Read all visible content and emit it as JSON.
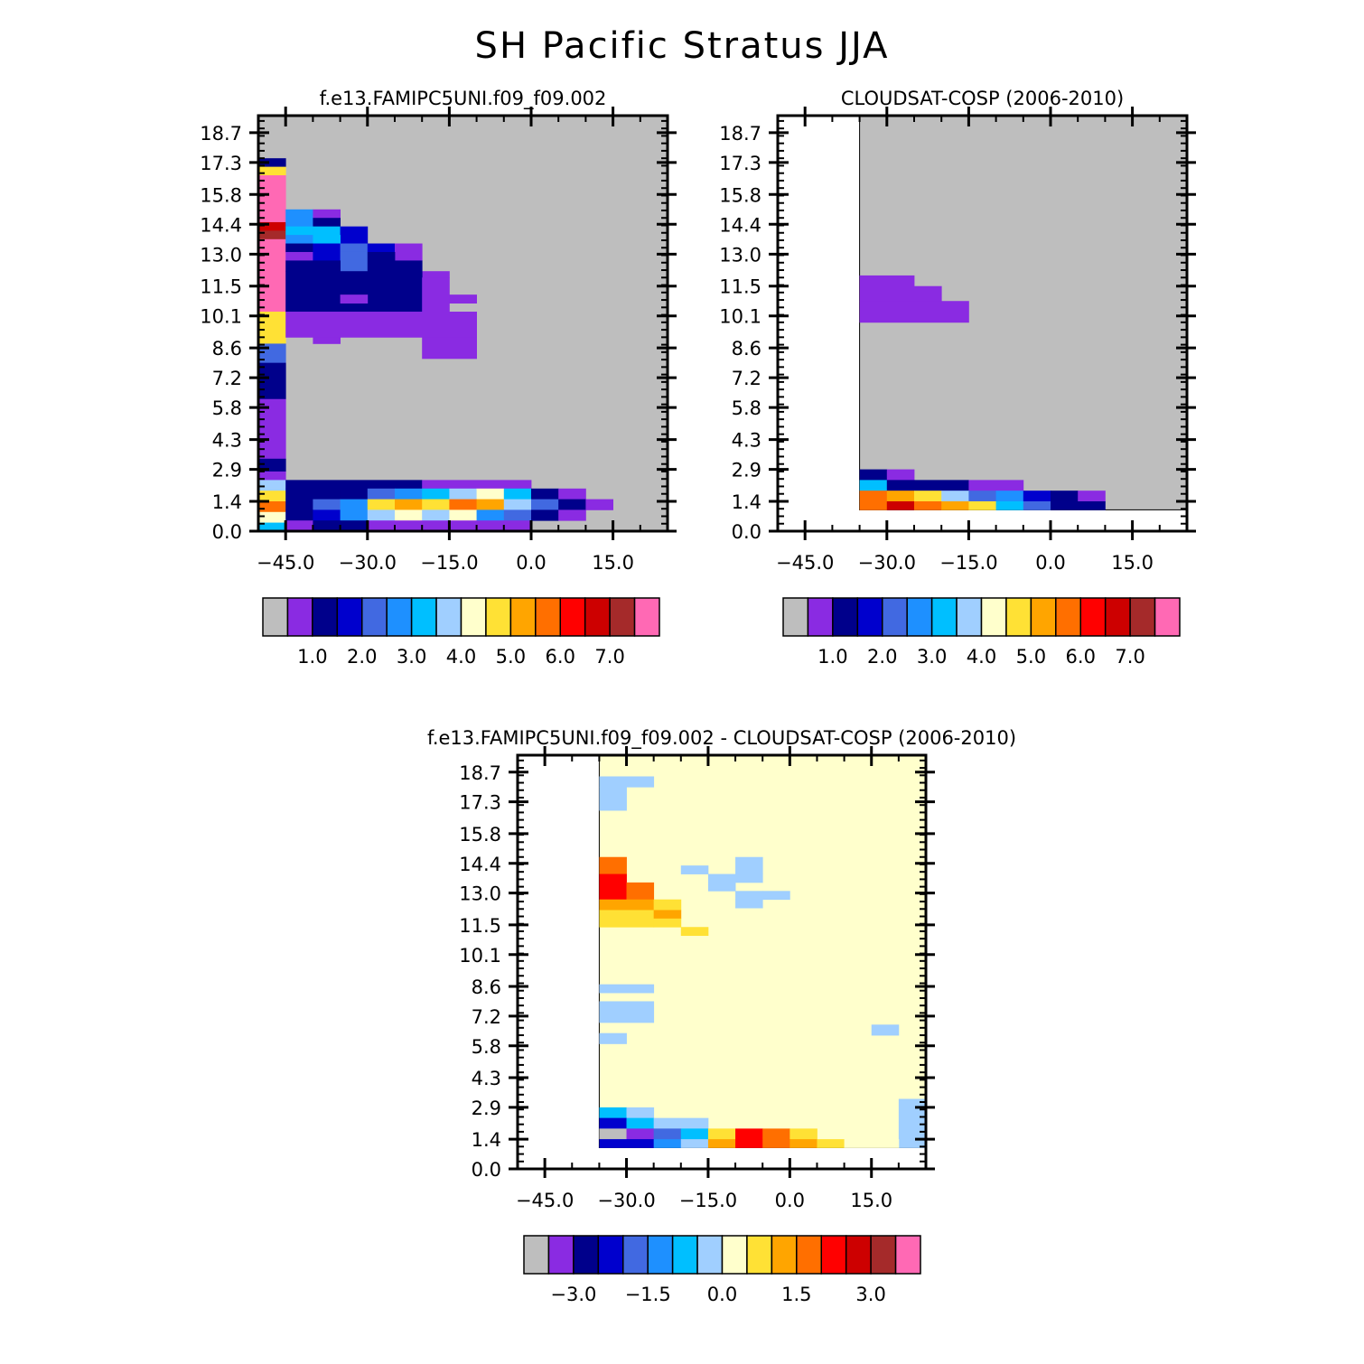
{
  "page": {
    "title": "SH Pacific Stratus JJA"
  },
  "palette": {
    "grey": "#bebebe",
    "violet": "#8a2be2",
    "navy": "#00008b",
    "medblue": "#0000cd",
    "royal": "#4169e1",
    "dodger": "#1e90ff",
    "sky": "#00bfff",
    "lightsky": "#a0cfff",
    "cream": "#ffffcc",
    "gold": "#ffe135",
    "orange": "#ffa500",
    "darkorange": "#ff6f00",
    "red": "#ff0000",
    "crimson": "#cd0000",
    "brick": "#a52a2a",
    "pink": "#ff69b4"
  },
  "chart_data": [
    {
      "id": "model",
      "type": "heatmap",
      "title": "f.e13.FAMIPC5UNI.f09_f09.002",
      "xlabel": "",
      "ylabel": "",
      "xlim": [
        -50,
        25
      ],
      "ylim": [
        0,
        19.5
      ],
      "x_ticks": [
        "-45.0",
        "-30.0",
        "-15.0",
        "0.0",
        "15.0"
      ],
      "y_ticks": [
        "0.0",
        "1.4",
        "2.9",
        "4.3",
        "5.8",
        "7.2",
        "8.6",
        "10.1",
        "11.5",
        "13.0",
        "14.4",
        "15.8",
        "17.3",
        "18.7"
      ],
      "background": "grey",
      "cells": [
        [
          -50,
          17.1,
          -45,
          17.5,
          "navy"
        ],
        [
          -50,
          16.7,
          -45,
          17.1,
          "gold"
        ],
        [
          -50,
          14.5,
          -45,
          16.7,
          "pink"
        ],
        [
          -50,
          14.1,
          -45,
          14.5,
          "crimson"
        ],
        [
          -50,
          13.7,
          -45,
          14.1,
          "brick"
        ],
        [
          -50,
          10.3,
          -45,
          13.7,
          "pink"
        ],
        [
          -50,
          8.8,
          -45,
          10.3,
          "gold"
        ],
        [
          -50,
          7.9,
          -45,
          8.8,
          "royal"
        ],
        [
          -50,
          6.2,
          -45,
          7.9,
          "navy"
        ],
        [
          -50,
          3.4,
          -45,
          6.2,
          "violet"
        ],
        [
          -50,
          2.8,
          -45,
          3.4,
          "navy"
        ],
        [
          -50,
          2.4,
          -45,
          2.8,
          "violet"
        ],
        [
          -50,
          1.9,
          -45,
          2.4,
          "lightsky"
        ],
        [
          -50,
          1.4,
          -45,
          1.9,
          "gold"
        ],
        [
          -50,
          0.9,
          -45,
          1.4,
          "darkorange"
        ],
        [
          -50,
          0.4,
          -45,
          0.9,
          "cream"
        ],
        [
          -50,
          0,
          -45,
          0.4,
          "sky"
        ],
        [
          -45,
          14.3,
          -40,
          15.1,
          "dodger"
        ],
        [
          -40,
          14.7,
          -35,
          15.1,
          "violet"
        ],
        [
          -40,
          14.3,
          -35,
          14.7,
          "navy"
        ],
        [
          -45,
          13.9,
          -40,
          14.3,
          "sky"
        ],
        [
          -40,
          13.9,
          -35,
          14.3,
          "sky"
        ],
        [
          -35,
          13.5,
          -30,
          14.3,
          "medblue"
        ],
        [
          -45,
          13.5,
          -40,
          13.9,
          "dodger"
        ],
        [
          -40,
          13.5,
          -35,
          13.9,
          "sky"
        ],
        [
          -45,
          13.1,
          -40,
          13.5,
          "navy"
        ],
        [
          -40,
          13.1,
          -35,
          13.5,
          "medblue"
        ],
        [
          -35,
          13.1,
          -30,
          13.5,
          "royal"
        ],
        [
          -30,
          13.1,
          -25,
          13.5,
          "medblue"
        ],
        [
          -25,
          12.7,
          -20,
          13.5,
          "violet"
        ],
        [
          -45,
          12.7,
          -40,
          13.1,
          "violet"
        ],
        [
          -40,
          12.7,
          -35,
          13.1,
          "medblue"
        ],
        [
          -35,
          12.2,
          -30,
          13.1,
          "royal"
        ],
        [
          -30,
          12.2,
          -25,
          13.1,
          "navy"
        ],
        [
          -45,
          12.2,
          -35,
          12.7,
          "navy"
        ],
        [
          -25,
          12.2,
          -20,
          12.7,
          "navy"
        ],
        [
          -20,
          11.9,
          -15,
          12.2,
          "violet"
        ],
        [
          -45,
          10.3,
          -20,
          12.2,
          "navy"
        ],
        [
          -20,
          10.3,
          -15,
          11.9,
          "violet"
        ],
        [
          -15,
          10.7,
          -10,
          11.1,
          "violet"
        ],
        [
          -35,
          10.7,
          -30,
          11.1,
          "violet"
        ],
        [
          -45,
          9.1,
          -10,
          10.3,
          "violet"
        ],
        [
          -40,
          8.8,
          -35,
          9.1,
          "violet"
        ],
        [
          -20,
          8.1,
          -10,
          9.1,
          "violet"
        ],
        [
          -45,
          2.0,
          -20,
          2.4,
          "navy"
        ],
        [
          -20,
          2.0,
          0,
          2.4,
          "violet"
        ],
        [
          -45,
          1.5,
          -40,
          2.0,
          "navy"
        ],
        [
          -40,
          1.5,
          -35,
          2.0,
          "navy"
        ],
        [
          -35,
          1.5,
          -30,
          2.0,
          "navy"
        ],
        [
          -30,
          1.5,
          -25,
          2.0,
          "royal"
        ],
        [
          -25,
          1.5,
          -20,
          2.0,
          "dodger"
        ],
        [
          -20,
          1.5,
          -15,
          2.0,
          "sky"
        ],
        [
          -15,
          1.5,
          -10,
          2.0,
          "lightsky"
        ],
        [
          -10,
          1.5,
          -5,
          2.0,
          "cream"
        ],
        [
          -5,
          1.5,
          0,
          2.0,
          "sky"
        ],
        [
          0,
          1.5,
          5,
          2.0,
          "navy"
        ],
        [
          5,
          1.5,
          10,
          2.0,
          "violet"
        ],
        [
          -45,
          1.0,
          -40,
          1.5,
          "navy"
        ],
        [
          -40,
          1.0,
          -35,
          1.5,
          "royal"
        ],
        [
          -35,
          1.0,
          -30,
          1.5,
          "dodger"
        ],
        [
          -30,
          1.0,
          -25,
          1.5,
          "gold"
        ],
        [
          -25,
          1.0,
          -20,
          1.5,
          "orange"
        ],
        [
          -20,
          1.0,
          -15,
          1.5,
          "gold"
        ],
        [
          -15,
          1.0,
          -10,
          1.5,
          "darkorange"
        ],
        [
          -10,
          1.0,
          -5,
          1.5,
          "orange"
        ],
        [
          -5,
          1.0,
          0,
          1.5,
          "lightsky"
        ],
        [
          0,
          1.0,
          5,
          1.5,
          "royal"
        ],
        [
          5,
          1.0,
          10,
          1.5,
          "navy"
        ],
        [
          10,
          1.0,
          15,
          1.5,
          "violet"
        ],
        [
          -45,
          0.5,
          -40,
          1.0,
          "navy"
        ],
        [
          -40,
          0.5,
          -35,
          1.0,
          "medblue"
        ],
        [
          -35,
          0.5,
          -30,
          1.0,
          "dodger"
        ],
        [
          -30,
          0.5,
          -25,
          1.0,
          "lightsky"
        ],
        [
          -25,
          0.5,
          -20,
          1.0,
          "cream"
        ],
        [
          -20,
          0.5,
          -15,
          1.0,
          "lightsky"
        ],
        [
          -15,
          0.5,
          -10,
          1.0,
          "cream"
        ],
        [
          -10,
          0.5,
          -5,
          1.0,
          "dodger"
        ],
        [
          -5,
          0.5,
          0,
          1.0,
          "royal"
        ],
        [
          0,
          0.5,
          5,
          1.0,
          "navy"
        ],
        [
          5,
          0.5,
          10,
          1.0,
          "violet"
        ],
        [
          -45,
          0,
          -40,
          0.5,
          "violet"
        ],
        [
          -40,
          0,
          -30,
          0.5,
          "navy"
        ],
        [
          -30,
          0,
          0,
          0.5,
          "violet"
        ]
      ],
      "colorbar": {
        "colors": [
          "grey",
          "violet",
          "navy",
          "medblue",
          "royal",
          "dodger",
          "sky",
          "lightsky",
          "cream",
          "gold",
          "orange",
          "darkorange",
          "red",
          "crimson",
          "brick",
          "pink"
        ],
        "labels": [
          "1.0",
          "2.0",
          "3.0",
          "4.0",
          "5.0",
          "6.0",
          "7.0"
        ],
        "label_every": 2,
        "label_start": 2
      }
    },
    {
      "id": "obs",
      "type": "heatmap",
      "title": "CLOUDSAT-COSP (2006-2010)",
      "xlabel": "",
      "ylabel": "",
      "xlim": [
        -50,
        25
      ],
      "ylim": [
        0,
        19.5
      ],
      "x_ticks": [
        "-45.0",
        "-30.0",
        "-15.0",
        "0.0",
        "15.0"
      ],
      "y_ticks": [
        "0.0",
        "1.4",
        "2.9",
        "4.3",
        "5.8",
        "7.2",
        "8.6",
        "10.1",
        "11.5",
        "13.0",
        "14.4",
        "15.8",
        "17.3",
        "18.7"
      ],
      "data_region": [
        -35,
        1.0,
        25,
        19.5
      ],
      "background": "grey",
      "cells": [
        [
          -35,
          10.8,
          -25,
          12.0,
          "violet"
        ],
        [
          -25,
          10.8,
          -20,
          11.5,
          "violet"
        ],
        [
          -35,
          9.8,
          -15,
          10.8,
          "violet"
        ],
        [
          -35,
          2.4,
          -30,
          2.9,
          "navy"
        ],
        [
          -30,
          2.4,
          -25,
          2.9,
          "violet"
        ],
        [
          -35,
          1.9,
          -30,
          2.4,
          "sky"
        ],
        [
          -30,
          1.9,
          -25,
          2.4,
          "navy"
        ],
        [
          -25,
          1.9,
          -15,
          2.4,
          "navy"
        ],
        [
          -15,
          1.9,
          -5,
          2.4,
          "violet"
        ],
        [
          -35,
          1.4,
          -30,
          1.9,
          "darkorange"
        ],
        [
          -30,
          1.4,
          -25,
          1.9,
          "orange"
        ],
        [
          -25,
          1.4,
          -20,
          1.9,
          "gold"
        ],
        [
          -20,
          1.4,
          -15,
          1.9,
          "lightsky"
        ],
        [
          -15,
          1.4,
          -10,
          1.9,
          "royal"
        ],
        [
          -10,
          1.4,
          -5,
          1.9,
          "dodger"
        ],
        [
          -5,
          1.4,
          0,
          1.9,
          "medblue"
        ],
        [
          0,
          1.4,
          5,
          1.9,
          "navy"
        ],
        [
          5,
          1.4,
          10,
          1.9,
          "violet"
        ],
        [
          -35,
          1.0,
          -30,
          1.4,
          "darkorange"
        ],
        [
          -30,
          1.0,
          -25,
          1.4,
          "crimson"
        ],
        [
          -25,
          1.0,
          -20,
          1.4,
          "darkorange"
        ],
        [
          -20,
          1.0,
          -15,
          1.4,
          "orange"
        ],
        [
          -15,
          1.0,
          -10,
          1.4,
          "gold"
        ],
        [
          -10,
          1.0,
          -5,
          1.4,
          "sky"
        ],
        [
          -5,
          1.0,
          0,
          1.4,
          "royal"
        ],
        [
          0,
          1.0,
          5,
          1.4,
          "navy"
        ],
        [
          5,
          1.0,
          10,
          1.4,
          "navy"
        ]
      ],
      "colorbar": {
        "colors": [
          "grey",
          "violet",
          "navy",
          "medblue",
          "royal",
          "dodger",
          "sky",
          "lightsky",
          "cream",
          "gold",
          "orange",
          "darkorange",
          "red",
          "crimson",
          "brick",
          "pink"
        ],
        "labels": [
          "1.0",
          "2.0",
          "3.0",
          "4.0",
          "5.0",
          "6.0",
          "7.0"
        ],
        "label_every": 2,
        "label_start": 2
      }
    },
    {
      "id": "diff",
      "type": "heatmap",
      "title": "f.e13.FAMIPC5UNI.f09_f09.002 - CLOUDSAT-COSP (2006-2010)",
      "xlabel": "",
      "ylabel": "",
      "xlim": [
        -50,
        25
      ],
      "ylim": [
        0,
        19.5
      ],
      "x_ticks": [
        "-45.0",
        "-30.0",
        "-15.0",
        "0.0",
        "15.0"
      ],
      "y_ticks": [
        "0.0",
        "1.4",
        "2.9",
        "4.3",
        "5.8",
        "7.2",
        "8.6",
        "10.1",
        "11.5",
        "13.0",
        "14.4",
        "15.8",
        "17.3",
        "18.7"
      ],
      "data_region": [
        -35,
        1.0,
        25,
        19.5
      ],
      "background": "cream",
      "cells": [
        [
          -35,
          18.0,
          -25,
          18.5,
          "lightsky"
        ],
        [
          -35,
          16.9,
          -30,
          18.0,
          "lightsky"
        ],
        [
          -35,
          13.9,
          -30,
          14.7,
          "darkorange"
        ],
        [
          -35,
          12.7,
          -30,
          13.9,
          "red"
        ],
        [
          -30,
          12.7,
          -25,
          13.5,
          "darkorange"
        ],
        [
          -35,
          12.2,
          -25,
          12.7,
          "orange"
        ],
        [
          -25,
          12.2,
          -20,
          12.7,
          "gold"
        ],
        [
          -35,
          11.4,
          -25,
          12.2,
          "gold"
        ],
        [
          -25,
          11.8,
          -20,
          12.2,
          "orange"
        ],
        [
          -25,
          11.4,
          -20,
          11.8,
          "gold"
        ],
        [
          -20,
          11.0,
          -15,
          11.4,
          "gold"
        ],
        [
          -20,
          13.9,
          -15,
          14.3,
          "lightsky"
        ],
        [
          -10,
          13.9,
          -5,
          14.7,
          "lightsky"
        ],
        [
          -15,
          13.1,
          -10,
          13.9,
          "lightsky"
        ],
        [
          -10,
          13.5,
          -5,
          13.9,
          "lightsky"
        ],
        [
          -10,
          12.7,
          -5,
          13.1,
          "lightsky"
        ],
        [
          -5,
          12.7,
          0,
          13.1,
          "lightsky"
        ],
        [
          -10,
          12.3,
          -5,
          12.7,
          "lightsky"
        ],
        [
          -35,
          8.3,
          -25,
          8.7,
          "lightsky"
        ],
        [
          -35,
          6.9,
          -25,
          7.9,
          "lightsky"
        ],
        [
          -35,
          5.9,
          -30,
          6.4,
          "lightsky"
        ],
        [
          15,
          6.3,
          20,
          6.8,
          "lightsky"
        ],
        [
          20,
          1.0,
          25,
          3.3,
          "lightsky"
        ],
        [
          -35,
          2.4,
          -30,
          2.9,
          "sky"
        ],
        [
          -30,
          2.4,
          -25,
          2.9,
          "lightsky"
        ],
        [
          -35,
          1.9,
          -30,
          2.4,
          "medblue"
        ],
        [
          -30,
          1.9,
          -25,
          2.4,
          "sky"
        ],
        [
          -25,
          1.9,
          -15,
          2.4,
          "lightsky"
        ],
        [
          -35,
          1.4,
          -30,
          1.9,
          "grey"
        ],
        [
          -30,
          1.4,
          -25,
          1.9,
          "violet"
        ],
        [
          -25,
          1.4,
          -20,
          1.9,
          "royal"
        ],
        [
          -20,
          1.4,
          -15,
          1.9,
          "sky"
        ],
        [
          -15,
          1.4,
          -10,
          1.9,
          "gold"
        ],
        [
          -10,
          1.4,
          -5,
          1.9,
          "red"
        ],
        [
          -5,
          1.4,
          0,
          1.9,
          "darkorange"
        ],
        [
          0,
          1.4,
          5,
          1.9,
          "gold"
        ],
        [
          -35,
          1.0,
          -25,
          1.4,
          "medblue"
        ],
        [
          -25,
          1.0,
          -20,
          1.4,
          "dodger"
        ],
        [
          -20,
          1.0,
          -15,
          1.4,
          "lightsky"
        ],
        [
          -15,
          1.0,
          -10,
          1.4,
          "orange"
        ],
        [
          -10,
          1.0,
          -5,
          1.4,
          "red"
        ],
        [
          -5,
          1.0,
          0,
          1.4,
          "darkorange"
        ],
        [
          0,
          1.0,
          5,
          1.4,
          "orange"
        ],
        [
          5,
          1.0,
          10,
          1.4,
          "gold"
        ],
        [
          10,
          1.0,
          20,
          1.4,
          "cream"
        ]
      ],
      "colorbar": {
        "colors": [
          "grey",
          "violet",
          "navy",
          "medblue",
          "royal",
          "dodger",
          "sky",
          "lightsky",
          "cream",
          "gold",
          "orange",
          "darkorange",
          "red",
          "crimson",
          "brick",
          "pink"
        ],
        "labels": [
          "-3.0",
          "-1.5",
          "0.0",
          "1.5",
          "3.0"
        ],
        "label_every": 3,
        "label_start": 2
      }
    }
  ]
}
